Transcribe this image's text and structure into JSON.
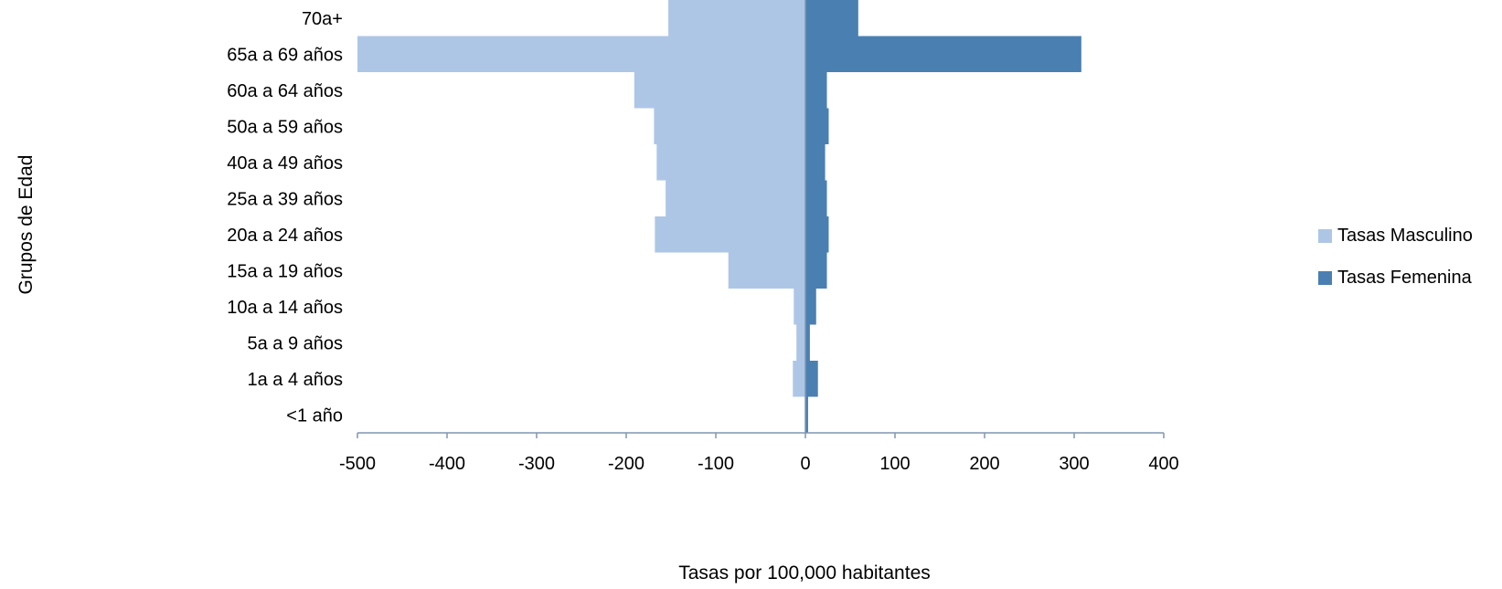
{
  "chart_data": {
    "type": "bar",
    "orientation": "horizontal",
    "categories": [
      "70a+",
      "65a a 69 años",
      "60a a 64 años",
      "50a a 59 años",
      "40a a 49 años",
      "25a a 39 años",
      "20a a 24 años",
      "15a  a 19 años",
      "10a  a 14 años",
      "5a a 9 años",
      "1a a 4 años",
      "<1 año"
    ],
    "series": [
      {
        "name": "Tasas Masculino",
        "color": "#aec6e6",
        "values": [
          -153,
          -500,
          -191,
          -169,
          -166,
          -156,
          -168,
          -86,
          -13,
          -10,
          -14,
          0
        ]
      },
      {
        "name": "Tasas Femenina",
        "color": "#4a7fb2",
        "values": [
          59,
          308,
          24,
          26,
          22,
          24,
          26,
          24,
          12,
          5,
          14,
          3
        ]
      }
    ],
    "xlabel": "Tasas por 100,000 habitantes",
    "ylabel": "Grupos de Edad",
    "xlim": [
      -500,
      400
    ],
    "x_ticks": [
      -500,
      -400,
      -300,
      -200,
      -100,
      0,
      100,
      200,
      300,
      400
    ],
    "axis_color": "#7f96b2",
    "legend_position": "right",
    "grid": false
  }
}
